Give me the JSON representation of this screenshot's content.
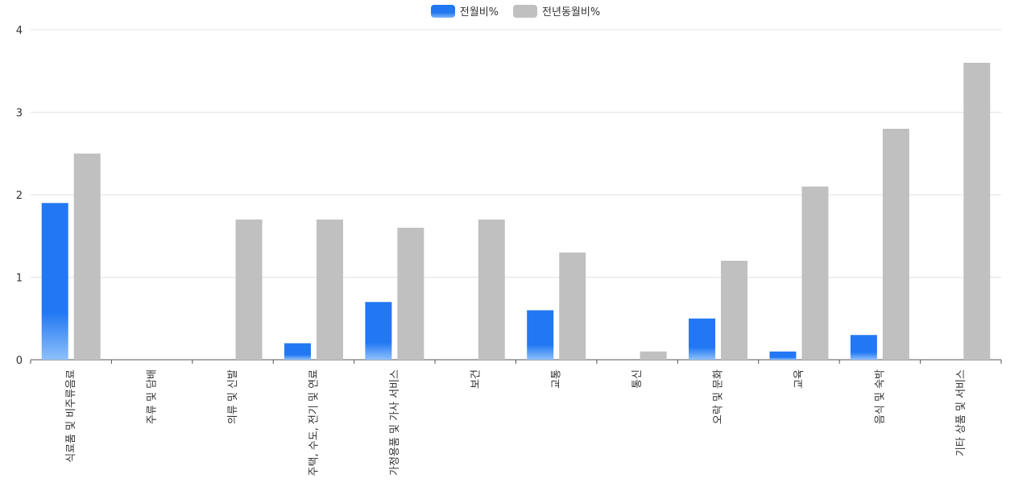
{
  "chart_data": {
    "type": "bar",
    "title": "",
    "xlabel": "",
    "ylabel": "",
    "ylim": [
      0,
      4
    ],
    "yticks": [
      0,
      1,
      2,
      3,
      4
    ],
    "grid": true,
    "legend_position": "top-center",
    "categories": [
      "식료품 및 비주류음료",
      "주류 및 담배",
      "의류 및 신발",
      "주택, 수도, 전기 및 연료",
      "가정용품 및 가사 서비스",
      "보건",
      "교통",
      "통신",
      "오락 및 문화",
      "교육",
      "음식 및 숙박",
      "기타 상품 및 서비스"
    ],
    "series": [
      {
        "name": "전월비%",
        "color": "#2278f2",
        "values": [
          1.9,
          0,
          0,
          0.2,
          0.7,
          0,
          0.6,
          0,
          0.5,
          0.1,
          0.3,
          0
        ]
      },
      {
        "name": "전년동월비%",
        "color": "#c0c0c0",
        "values": [
          2.5,
          0,
          1.7,
          1.7,
          1.6,
          1.7,
          1.3,
          0.1,
          1.2,
          2.1,
          2.8,
          3.6
        ]
      }
    ]
  }
}
